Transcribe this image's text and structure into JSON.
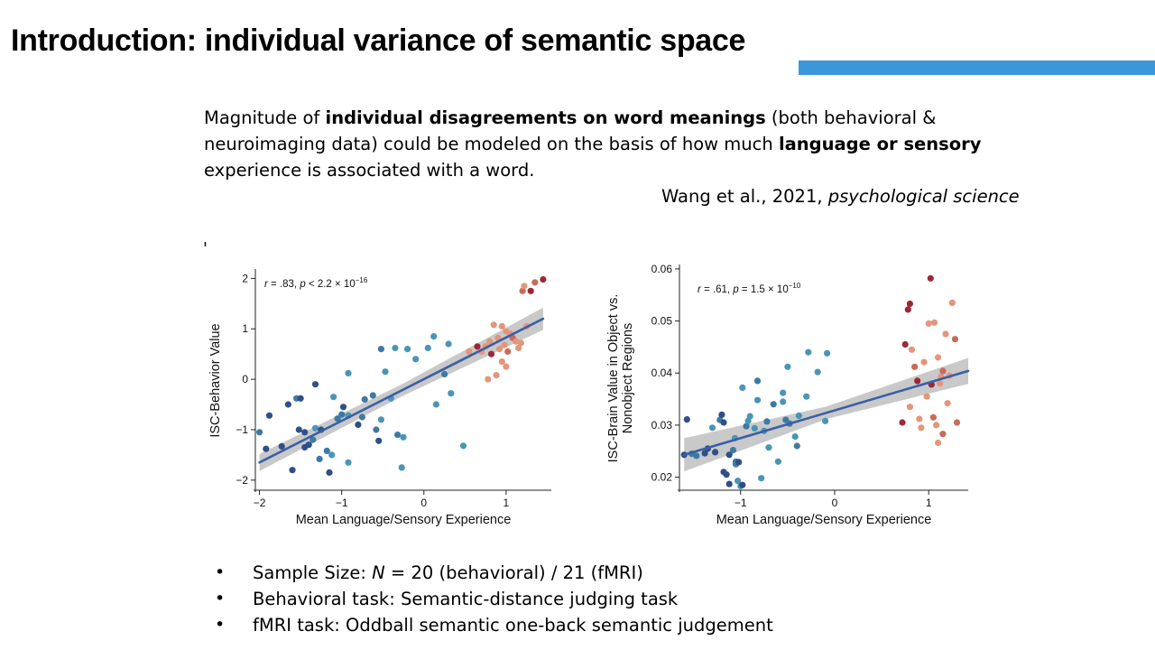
{
  "slide": {
    "title": "Introduction: individual variance of semantic space",
    "accent_color": "#3b97d9",
    "summary": {
      "t1": "Magnitude of ",
      "b1": "individual disagreements on word meanings",
      "t2": " (both behavioral & neuroimaging data) could be modeled on the basis of how much ",
      "b2": "language or sensory",
      "t3": " experience is associated with a word."
    },
    "citation": {
      "authors": "Wang et al., 2021, ",
      "journal": "psychological science"
    },
    "stray_mark": "'",
    "bullets": [
      {
        "prefix": "Sample Size: ",
        "italic": "N",
        "suffix": " = 20 (behavioral) / 21 (fMRI)"
      },
      {
        "prefix": "Behavioral task: Semantic-distance judging task",
        "italic": "",
        "suffix": ""
      },
      {
        "prefix": "fMRI task: Oddball semantic one-back semantic judgement",
        "italic": "",
        "suffix": ""
      }
    ],
    "bullet_symbol": "•"
  },
  "chart_data": [
    {
      "type": "scatter",
      "title": "",
      "xlabel": "Mean Language/Sensory Experience",
      "ylabel": "ISC-Behavior Value",
      "xlim": [
        -2.05,
        1.55
      ],
      "ylim": [
        -2.2,
        2.15
      ],
      "xticks": [
        -2,
        -1,
        0,
        1
      ],
      "yticks": [
        -2,
        -1,
        0,
        1,
        2
      ],
      "xticklabels": [
        "−2",
        "−1",
        "0",
        "1"
      ],
      "yticklabels": [
        "−2",
        "−1",
        "0",
        "1",
        "2"
      ],
      "grid": false,
      "annotation": {
        "r": "r",
        "r_val": " = .83, ",
        "p": "p",
        "p_val": " < 2.2 × 10",
        "exp": "−16"
      },
      "fit": {
        "x": [
          -2,
          1.45
        ],
        "y": [
          -1.65,
          1.2
        ],
        "band": [
          0.17,
          0.12,
          0.22
        ]
      },
      "colors": [
        "#2f4f87",
        "#3d7aa3",
        "#4a95b4",
        "#e2967c",
        "#c96a5a",
        "#9b2935"
      ],
      "points": [
        [
          -2.0,
          -1.05,
          1
        ],
        [
          -1.92,
          -1.38,
          0
        ],
        [
          -1.88,
          -0.72,
          0
        ],
        [
          -1.73,
          -1.33,
          0
        ],
        [
          -1.65,
          -0.5,
          0
        ],
        [
          -1.6,
          -1.8,
          0
        ],
        [
          -1.55,
          -0.38,
          1
        ],
        [
          -1.5,
          -0.38,
          0
        ],
        [
          -1.52,
          -1.0,
          0
        ],
        [
          -1.45,
          -1.05,
          0
        ],
        [
          -1.45,
          -1.35,
          0
        ],
        [
          -1.4,
          -1.3,
          0
        ],
        [
          -1.35,
          -1.2,
          1
        ],
        [
          -1.32,
          -0.1,
          0
        ],
        [
          -1.32,
          -0.97,
          2
        ],
        [
          -1.27,
          -1.58,
          1
        ],
        [
          -1.25,
          -1.0,
          0
        ],
        [
          -1.18,
          -1.42,
          1
        ],
        [
          -1.15,
          -1.85,
          0
        ],
        [
          -1.12,
          -1.5,
          2
        ],
        [
          -1.1,
          -0.35,
          2
        ],
        [
          -1.05,
          -0.78,
          1
        ],
        [
          -1.0,
          -0.7,
          1
        ],
        [
          -0.98,
          -0.55,
          0
        ],
        [
          -0.92,
          -0.72,
          2
        ],
        [
          -0.92,
          0.12,
          2
        ],
        [
          -0.92,
          -1.65,
          2
        ],
        [
          -0.8,
          -0.9,
          0
        ],
        [
          -0.75,
          -0.75,
          1
        ],
        [
          -0.72,
          -0.4,
          1
        ],
        [
          -0.62,
          -0.32,
          1
        ],
        [
          -0.58,
          -1.0,
          1
        ],
        [
          -0.55,
          -1.22,
          0
        ],
        [
          -0.52,
          -0.8,
          2
        ],
        [
          -0.52,
          0.6,
          1
        ],
        [
          -0.47,
          0.15,
          2
        ],
        [
          -0.4,
          -0.38,
          2
        ],
        [
          -0.35,
          0.62,
          2
        ],
        [
          -0.32,
          -1.1,
          1
        ],
        [
          -0.27,
          -1.75,
          2
        ],
        [
          -0.25,
          -1.15,
          2
        ],
        [
          -0.2,
          0.6,
          2
        ],
        [
          -0.1,
          0.4,
          2
        ],
        [
          0.05,
          0.62,
          2
        ],
        [
          0.12,
          0.85,
          2
        ],
        [
          0.15,
          -0.5,
          2
        ],
        [
          0.25,
          0.1,
          1
        ],
        [
          0.3,
          0.7,
          2
        ],
        [
          0.33,
          -0.28,
          2
        ],
        [
          0.48,
          -1.32,
          2
        ],
        [
          0.55,
          0.55,
          3
        ],
        [
          0.65,
          0.65,
          5
        ],
        [
          0.7,
          0.55,
          3
        ],
        [
          0.75,
          0.65,
          3
        ],
        [
          0.78,
          0.0,
          3
        ],
        [
          0.8,
          0.75,
          3
        ],
        [
          0.82,
          0.5,
          5
        ],
        [
          0.85,
          1.08,
          3
        ],
        [
          0.88,
          0.08,
          3
        ],
        [
          0.9,
          0.82,
          3
        ],
        [
          0.92,
          0.6,
          3
        ],
        [
          0.95,
          1.05,
          3
        ],
        [
          0.95,
          0.35,
          3
        ],
        [
          0.98,
          0.68,
          3
        ],
        [
          1.0,
          0.95,
          3
        ],
        [
          1.0,
          0.25,
          3
        ],
        [
          1.02,
          0.55,
          4
        ],
        [
          1.05,
          0.9,
          3
        ],
        [
          1.08,
          0.82,
          4
        ],
        [
          1.12,
          0.75,
          3
        ],
        [
          1.15,
          0.62,
          3
        ],
        [
          1.18,
          0.72,
          3
        ],
        [
          1.2,
          1.75,
          4
        ],
        [
          1.22,
          1.85,
          3
        ],
        [
          1.25,
          1.05,
          3
        ],
        [
          1.3,
          1.75,
          5
        ],
        [
          1.35,
          1.92,
          4
        ],
        [
          1.45,
          1.98,
          5
        ]
      ]
    },
    {
      "type": "scatter",
      "title": "",
      "xlabel": "Mean Language/Sensory Experience",
      "ylabel": "ISC-Brain Value in Object vs. Nonobject Regions",
      "ylabel_lines": [
        "ISC-Brain Value in Object vs.",
        "Nonobject Regions"
      ],
      "xlim": [
        -1.65,
        1.42
      ],
      "ylim": [
        0.0175,
        0.0605
      ],
      "xticks": [
        -1,
        0,
        1
      ],
      "yticks": [
        0.02,
        0.03,
        0.04,
        0.05,
        0.06
      ],
      "xticklabels": [
        "−1",
        "0",
        "1"
      ],
      "yticklabels": [
        "0.02",
        "0.03",
        "0.04",
        "0.05",
        "0.06"
      ],
      "grid": false,
      "annotation": {
        "r": "r",
        "r_val": " = .61, ",
        "p": "p",
        "p_val": " = 1.5 × 10",
        "exp": "−10"
      },
      "fit": {
        "x": [
          -1.6,
          1.42
        ],
        "y": [
          0.0243,
          0.0404
        ],
        "band": [
          0.0032,
          0.0012,
          0.0025
        ]
      },
      "colors": [
        "#2f4f87",
        "#3d7aa3",
        "#4a95b4",
        "#e2967c",
        "#c96a5a",
        "#9b2935"
      ],
      "points": [
        [
          -1.6,
          0.0243,
          0
        ],
        [
          -1.57,
          0.0311,
          0
        ],
        [
          -1.52,
          0.0245,
          1
        ],
        [
          -1.47,
          0.0241,
          1
        ],
        [
          -1.38,
          0.0246,
          0
        ],
        [
          -1.35,
          0.0255,
          0
        ],
        [
          -1.3,
          0.0295,
          2
        ],
        [
          -1.27,
          0.0248,
          0
        ],
        [
          -1.22,
          0.031,
          1
        ],
        [
          -1.2,
          0.032,
          0
        ],
        [
          -1.18,
          0.0305,
          0
        ],
        [
          -1.18,
          0.021,
          0
        ],
        [
          -1.15,
          0.0205,
          0
        ],
        [
          -1.12,
          0.0187,
          0
        ],
        [
          -1.12,
          0.0243,
          0
        ],
        [
          -1.08,
          0.0252,
          1
        ],
        [
          -1.06,
          0.0275,
          2
        ],
        [
          -1.05,
          0.0225,
          1
        ],
        [
          -1.05,
          0.023,
          1
        ],
        [
          -1.03,
          0.0193,
          2
        ],
        [
          -1.02,
          0.0229,
          0
        ],
        [
          -1.0,
          0.0183,
          2
        ],
        [
          -0.98,
          0.0372,
          2
        ],
        [
          -0.98,
          0.0185,
          0
        ],
        [
          -0.94,
          0.0298,
          1
        ],
        [
          -0.92,
          0.0308,
          2
        ],
        [
          -0.9,
          0.0317,
          2
        ],
        [
          -0.85,
          0.0294,
          2
        ],
        [
          -0.82,
          0.0348,
          2
        ],
        [
          -0.82,
          0.0385,
          1
        ],
        [
          -0.78,
          0.0198,
          2
        ],
        [
          -0.75,
          0.0289,
          2
        ],
        [
          -0.72,
          0.0307,
          1
        ],
        [
          -0.7,
          0.0257,
          2
        ],
        [
          -0.65,
          0.034,
          1
        ],
        [
          -0.6,
          0.023,
          2
        ],
        [
          -0.55,
          0.0362,
          2
        ],
        [
          -0.55,
          0.0345,
          2
        ],
        [
          -0.52,
          0.031,
          1
        ],
        [
          -0.5,
          0.0412,
          2
        ],
        [
          -0.48,
          0.0303,
          1
        ],
        [
          -0.42,
          0.0278,
          2
        ],
        [
          -0.4,
          0.026,
          1
        ],
        [
          -0.38,
          0.0318,
          2
        ],
        [
          -0.3,
          0.0355,
          2
        ],
        [
          -0.28,
          0.044,
          2
        ],
        [
          -0.18,
          0.0402,
          2
        ],
        [
          -0.1,
          0.0308,
          2
        ],
        [
          -0.08,
          0.0438,
          2
        ],
        [
          0.72,
          0.0305,
          5
        ],
        [
          0.75,
          0.0455,
          5
        ],
        [
          0.78,
          0.0522,
          5
        ],
        [
          0.8,
          0.0533,
          5
        ],
        [
          0.8,
          0.0335,
          3
        ],
        [
          0.82,
          0.0445,
          3
        ],
        [
          0.85,
          0.0412,
          4
        ],
        [
          0.88,
          0.0385,
          5
        ],
        [
          0.9,
          0.0312,
          3
        ],
        [
          0.92,
          0.0295,
          3
        ],
        [
          0.95,
          0.0421,
          3
        ],
        [
          0.98,
          0.0355,
          3
        ],
        [
          1.0,
          0.0495,
          3
        ],
        [
          1.02,
          0.0582,
          5
        ],
        [
          1.03,
          0.0378,
          5
        ],
        [
          1.05,
          0.0315,
          4
        ],
        [
          1.06,
          0.0497,
          3
        ],
        [
          1.08,
          0.03,
          3
        ],
        [
          1.1,
          0.0266,
          3
        ],
        [
          1.1,
          0.043,
          3
        ],
        [
          1.12,
          0.038,
          3
        ],
        [
          1.13,
          0.0393,
          3
        ],
        [
          1.15,
          0.0283,
          4
        ],
        [
          1.15,
          0.0404,
          4
        ],
        [
          1.18,
          0.0475,
          3
        ],
        [
          1.2,
          0.0342,
          3
        ],
        [
          1.22,
          0.0395,
          3
        ],
        [
          1.25,
          0.0535,
          3
        ],
        [
          1.28,
          0.0465,
          4
        ],
        [
          1.3,
          0.0305,
          4
        ]
      ]
    }
  ]
}
